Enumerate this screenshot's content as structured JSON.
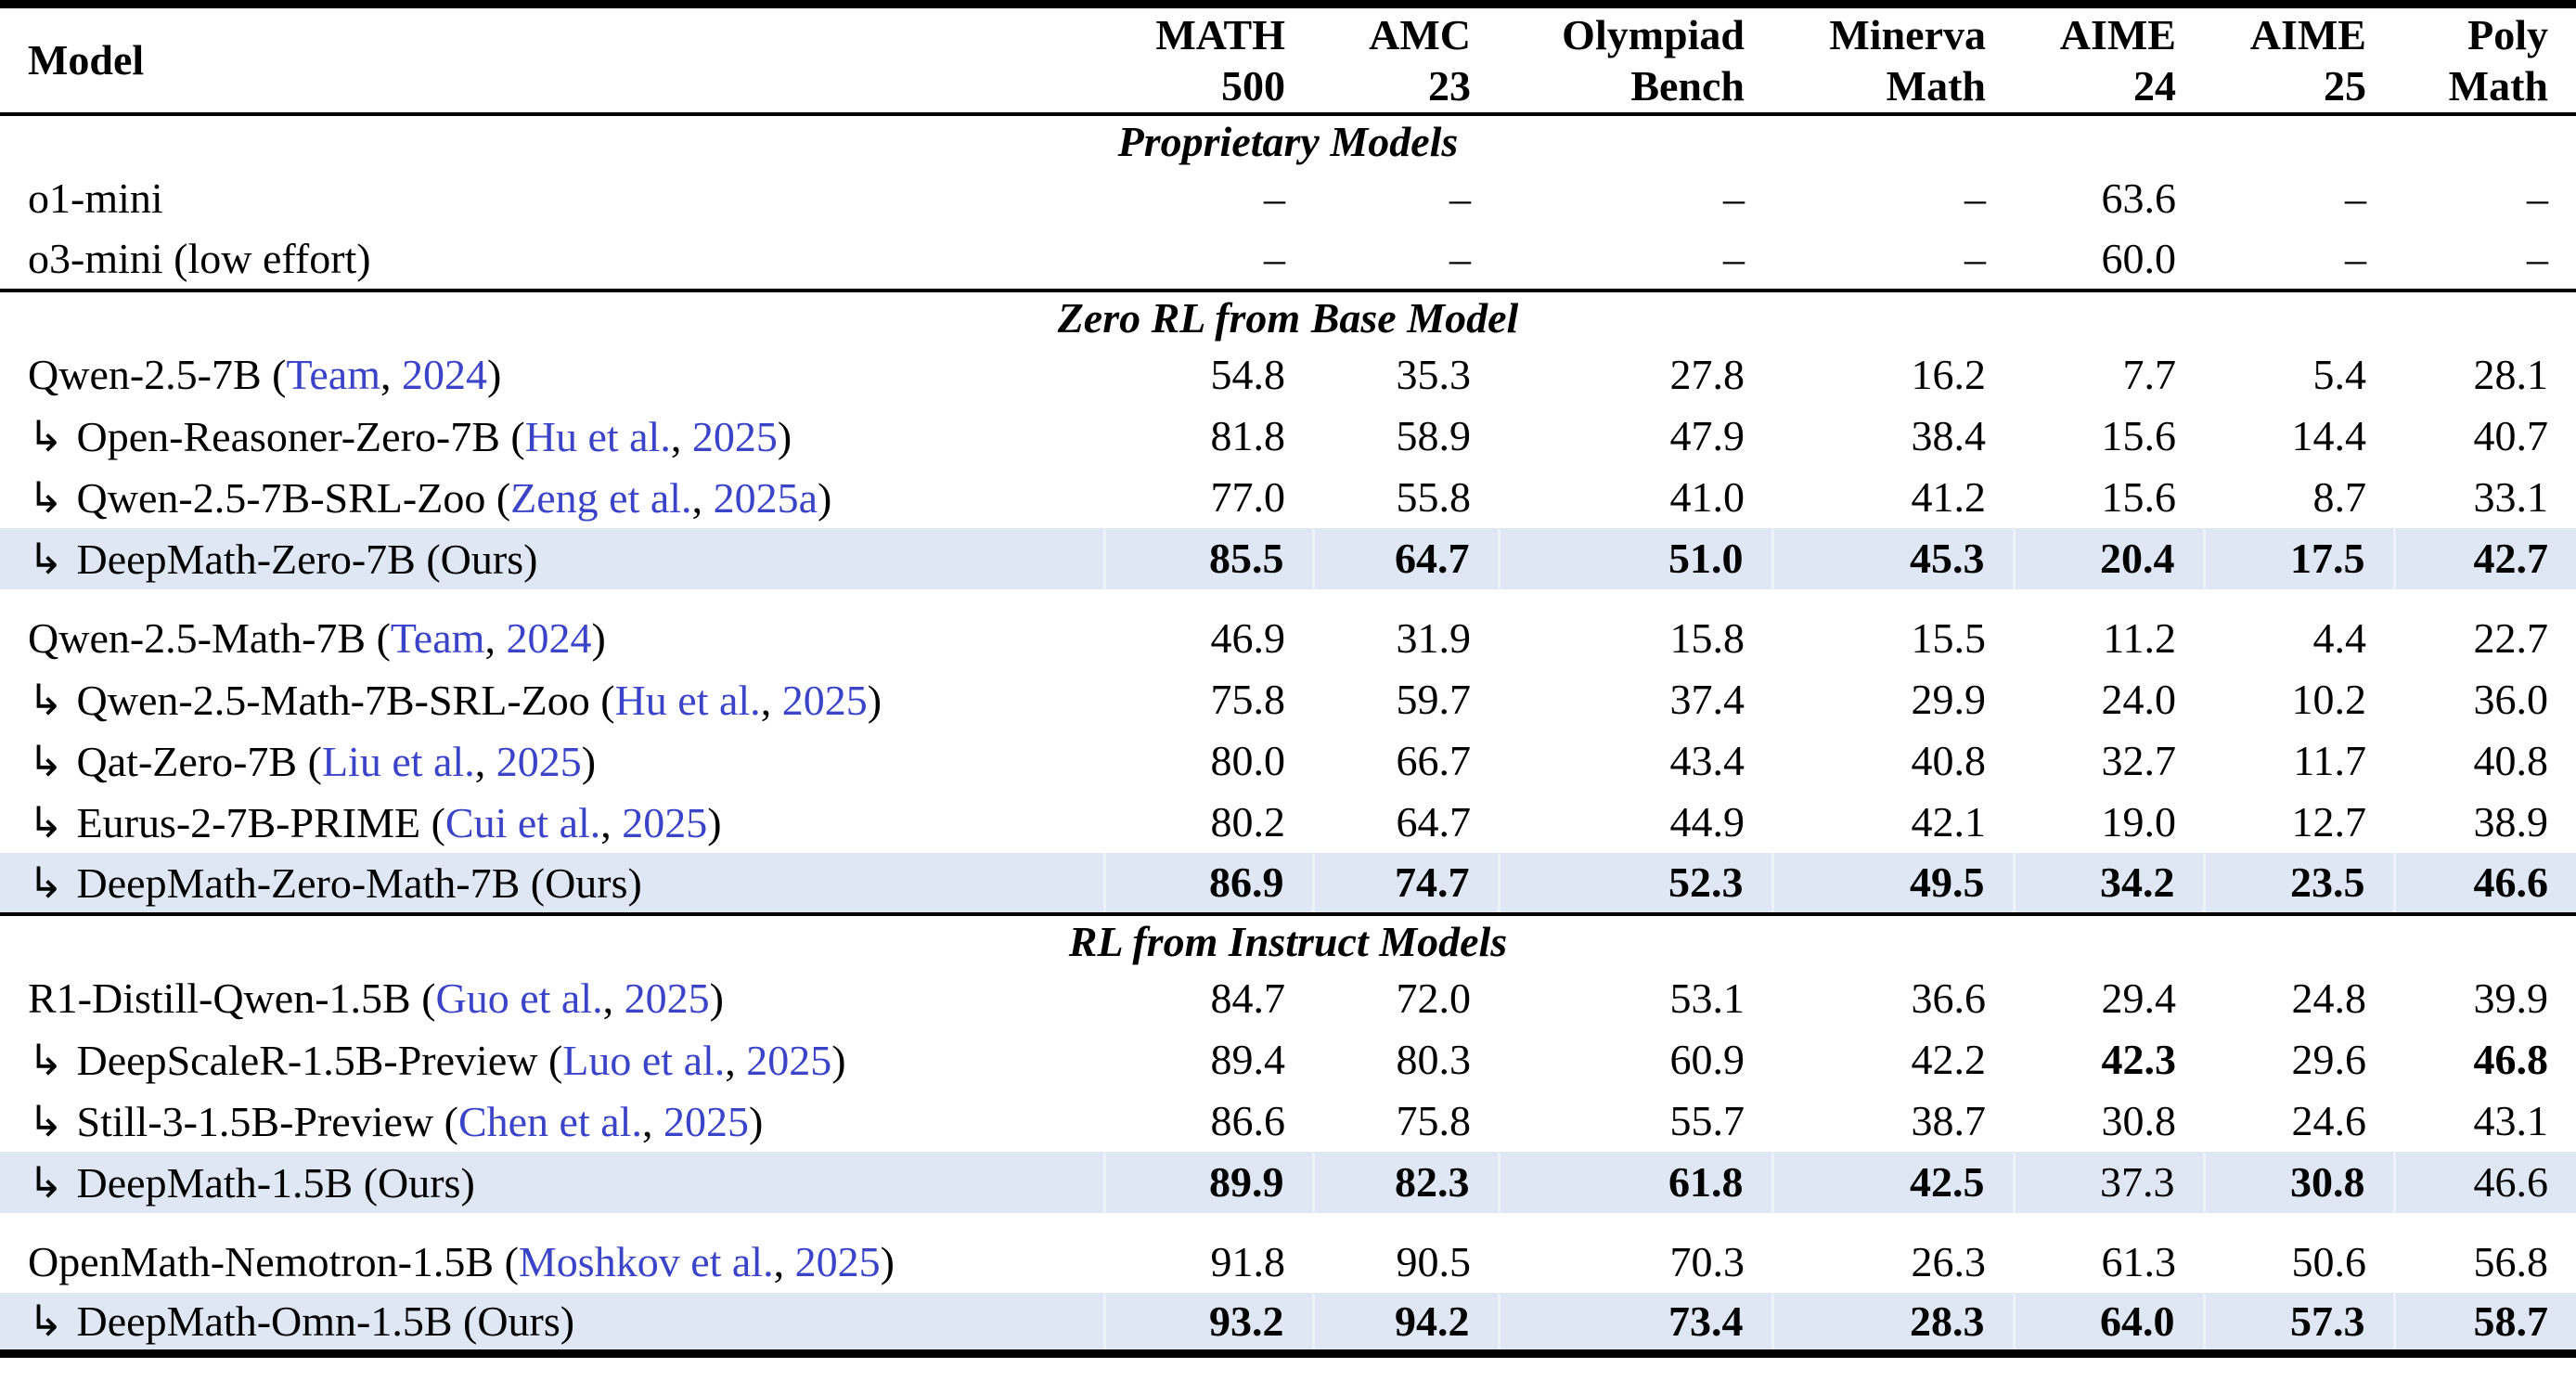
{
  "page": {
    "background": "#ffffff"
  },
  "table": {
    "arrow_glyph": "↳",
    "colors": {
      "highlight_row": "#dee7f3",
      "citation_link": "#3b44c8",
      "text": "#000000",
      "rule": "#000000"
    },
    "header": {
      "model_label": "Model",
      "columns": [
        {
          "line1": "MATH",
          "line2": "500"
        },
        {
          "line1": "AMC",
          "line2": "23"
        },
        {
          "line1": "Olympiad",
          "line2": "Bench"
        },
        {
          "line1": "Minerva",
          "line2": "Math"
        },
        {
          "line1": "AIME",
          "line2": "24"
        },
        {
          "line1": "AIME",
          "line2": "25"
        },
        {
          "line1": "Poly",
          "line2": "Math"
        }
      ]
    },
    "sections": [
      {
        "title": "Proprietary Models",
        "groups": [
          {
            "rows": [
              {
                "model_prefix": "o1-mini",
                "arrow": false,
                "highlight": false,
                "values": [
                  "–",
                  "–",
                  "–",
                  "–",
                  "63.6",
                  "–",
                  "–"
                ],
                "bold": []
              },
              {
                "model_prefix": "o3-mini (low effort)",
                "arrow": false,
                "highlight": false,
                "values": [
                  "–",
                  "–",
                  "–",
                  "–",
                  "60.0",
                  "–",
                  "–"
                ],
                "bold": []
              }
            ]
          }
        ]
      },
      {
        "title": "Zero RL from Base Model",
        "groups": [
          {
            "rows": [
              {
                "model_prefix": "Qwen-2.5-7B (",
                "cite_name": "Team",
                "cite_sep": ", ",
                "cite_year": "2024",
                "model_suffix": ")",
                "arrow": false,
                "highlight": false,
                "values": [
                  "54.8",
                  "35.3",
                  "27.8",
                  "16.2",
                  "7.7",
                  "5.4",
                  "28.1"
                ],
                "bold": []
              },
              {
                "model_prefix": "Open-Reasoner-Zero-7B (",
                "cite_name": "Hu et al.",
                "cite_sep": ", ",
                "cite_year": "2025",
                "model_suffix": ")",
                "arrow": true,
                "highlight": false,
                "values": [
                  "81.8",
                  "58.9",
                  "47.9",
                  "38.4",
                  "15.6",
                  "14.4",
                  "40.7"
                ],
                "bold": []
              },
              {
                "model_prefix": "Qwen-2.5-7B-SRL-Zoo (",
                "cite_name": "Zeng et al.",
                "cite_sep": ", ",
                "cite_year": "2025a",
                "model_suffix": ")",
                "arrow": true,
                "highlight": false,
                "values": [
                  "77.0",
                  "55.8",
                  "41.0",
                  "41.2",
                  "15.6",
                  "8.7",
                  "33.1"
                ],
                "bold": []
              },
              {
                "model_prefix": "DeepMath-Zero-7B (Ours)",
                "arrow": true,
                "highlight": true,
                "values": [
                  "85.5",
                  "64.7",
                  "51.0",
                  "45.3",
                  "20.4",
                  "17.5",
                  "42.7"
                ],
                "bold": [
                  0,
                  1,
                  2,
                  3,
                  4,
                  5,
                  6
                ]
              }
            ]
          },
          {
            "rows": [
              {
                "model_prefix": "Qwen-2.5-Math-7B (",
                "cite_name": "Team",
                "cite_sep": ", ",
                "cite_year": "2024",
                "model_suffix": ")",
                "arrow": false,
                "highlight": false,
                "values": [
                  "46.9",
                  "31.9",
                  "15.8",
                  "15.5",
                  "11.2",
                  "4.4",
                  "22.7"
                ],
                "bold": []
              },
              {
                "model_prefix": "Qwen-2.5-Math-7B-SRL-Zoo (",
                "cite_name": "Hu et al.",
                "cite_sep": ", ",
                "cite_year": "2025",
                "model_suffix": ")",
                "arrow": true,
                "highlight": false,
                "values": [
                  "75.8",
                  "59.7",
                  "37.4",
                  "29.9",
                  "24.0",
                  "10.2",
                  "36.0"
                ],
                "bold": []
              },
              {
                "model_prefix": "Qat-Zero-7B (",
                "cite_name": "Liu et al.",
                "cite_sep": ", ",
                "cite_year": "2025",
                "model_suffix": ")",
                "arrow": true,
                "highlight": false,
                "values": [
                  "80.0",
                  "66.7",
                  "43.4",
                  "40.8",
                  "32.7",
                  "11.7",
                  "40.8"
                ],
                "bold": []
              },
              {
                "model_prefix": "Eurus-2-7B-PRIME (",
                "cite_name": "Cui et al.",
                "cite_sep": ", ",
                "cite_year": "2025",
                "model_suffix": ")",
                "arrow": true,
                "highlight": false,
                "values": [
                  "80.2",
                  "64.7",
                  "44.9",
                  "42.1",
                  "19.0",
                  "12.7",
                  "38.9"
                ],
                "bold": []
              },
              {
                "model_prefix": "DeepMath-Zero-Math-7B (Ours)",
                "arrow": true,
                "highlight": true,
                "values": [
                  "86.9",
                  "74.7",
                  "52.3",
                  "49.5",
                  "34.2",
                  "23.5",
                  "46.6"
                ],
                "bold": [
                  0,
                  1,
                  2,
                  3,
                  4,
                  5,
                  6
                ]
              }
            ]
          }
        ]
      },
      {
        "title": "RL from Instruct Models",
        "groups": [
          {
            "rows": [
              {
                "model_prefix": "R1-Distill-Qwen-1.5B (",
                "cite_name": "Guo et al.",
                "cite_sep": ", ",
                "cite_year": "2025",
                "model_suffix": ")",
                "arrow": false,
                "highlight": false,
                "values": [
                  "84.7",
                  "72.0",
                  "53.1",
                  "36.6",
                  "29.4",
                  "24.8",
                  "39.9"
                ],
                "bold": []
              },
              {
                "model_prefix": "DeepScaleR-1.5B-Preview (",
                "cite_name": "Luo et al.",
                "cite_sep": ", ",
                "cite_year": "2025",
                "model_suffix": ")",
                "arrow": true,
                "highlight": false,
                "values": [
                  "89.4",
                  "80.3",
                  "60.9",
                  "42.2",
                  "42.3",
                  "29.6",
                  "46.8"
                ],
                "bold": [
                  4,
                  6
                ]
              },
              {
                "model_prefix": "Still-3-1.5B-Preview (",
                "cite_name": "Chen et al.",
                "cite_sep": ", ",
                "cite_year": "2025",
                "model_suffix": ")",
                "arrow": true,
                "highlight": false,
                "values": [
                  "86.6",
                  "75.8",
                  "55.7",
                  "38.7",
                  "30.8",
                  "24.6",
                  "43.1"
                ],
                "bold": []
              },
              {
                "model_prefix": "DeepMath-1.5B (Ours)",
                "arrow": true,
                "highlight": true,
                "values": [
                  "89.9",
                  "82.3",
                  "61.8",
                  "42.5",
                  "37.3",
                  "30.8",
                  "46.6"
                ],
                "bold": [
                  0,
                  1,
                  2,
                  3,
                  5
                ]
              }
            ]
          },
          {
            "rows": [
              {
                "model_prefix": "OpenMath-Nemotron-1.5B (",
                "cite_name": "Moshkov et al.",
                "cite_sep": ", ",
                "cite_year": "2025",
                "model_suffix": ")",
                "arrow": false,
                "highlight": false,
                "values": [
                  "91.8",
                  "90.5",
                  "70.3",
                  "26.3",
                  "61.3",
                  "50.6",
                  "56.8"
                ],
                "bold": []
              },
              {
                "model_prefix": "DeepMath-Omn-1.5B (Ours)",
                "arrow": true,
                "highlight": true,
                "values": [
                  "93.2",
                  "94.2",
                  "73.4",
                  "28.3",
                  "64.0",
                  "57.3",
                  "58.7"
                ],
                "bold": [
                  0,
                  1,
                  2,
                  3,
                  4,
                  5,
                  6
                ]
              }
            ]
          }
        ]
      }
    ]
  }
}
